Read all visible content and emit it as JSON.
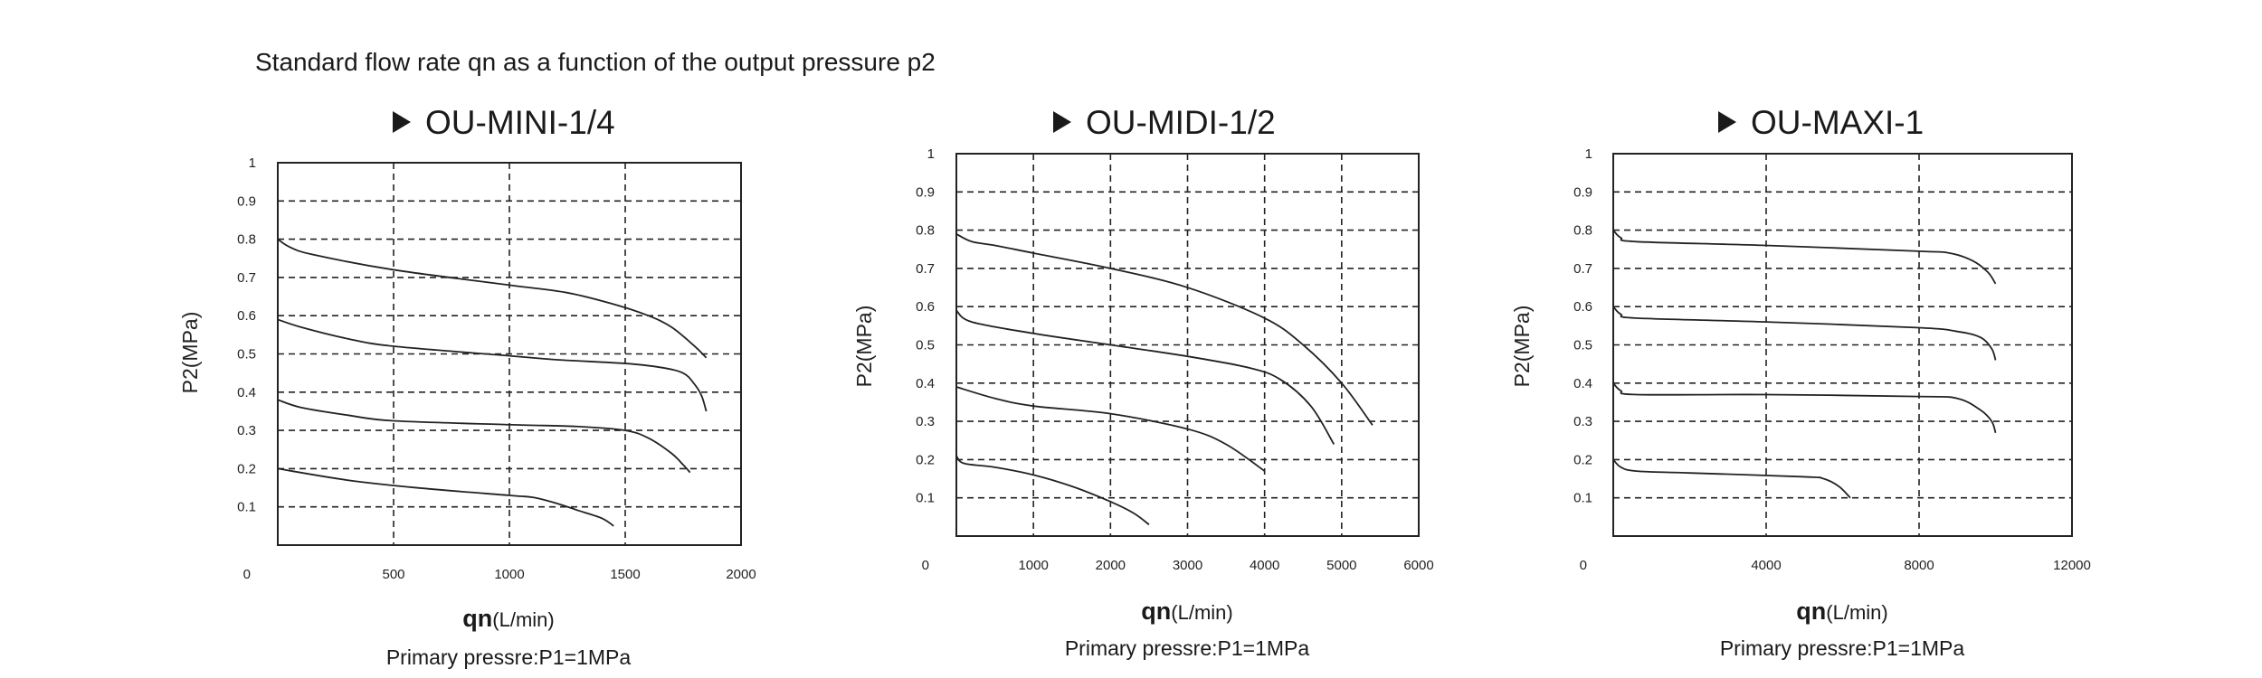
{
  "page_title": "Standard flow rate qn as a function of the output pressure p2",
  "chart_data": [
    {
      "type": "line",
      "title": "OU-MINI-1/4",
      "ylabel": "P2(MPa)",
      "xlabel_main": "qn",
      "xlabel_unit": "(L/min)",
      "footnote": "Primary pressre:P1=1MPa",
      "xlim": [
        0,
        2000
      ],
      "ylim": [
        0,
        1
      ],
      "x_ticks": [
        0,
        500,
        1000,
        1500,
        2000
      ],
      "x_tick_labels": [
        "0",
        "500",
        "1000",
        "1500",
        "2000"
      ],
      "y_ticks": [
        0.1,
        0.2,
        0.3,
        0.4,
        0.5,
        0.6,
        0.7,
        0.8,
        0.9,
        1
      ],
      "y_tick_labels": [
        "0.1",
        "0.2",
        "0.3",
        "0.4",
        "0.5",
        "0.6",
        "0.7",
        "0.8",
        "0.9",
        "1"
      ],
      "grid": true,
      "series": [
        {
          "x": [
            0,
            50,
            150,
            500,
            1000,
            1250,
            1450,
            1600,
            1700,
            1800,
            1850
          ],
          "y": [
            0.8,
            0.78,
            0.76,
            0.72,
            0.68,
            0.66,
            0.63,
            0.6,
            0.57,
            0.52,
            0.49
          ]
        },
        {
          "x": [
            0,
            100,
            300,
            500,
            1000,
            1200,
            1500,
            1650,
            1750,
            1800,
            1830,
            1850
          ],
          "y": [
            0.59,
            0.57,
            0.54,
            0.52,
            0.495,
            0.485,
            0.475,
            0.465,
            0.45,
            0.42,
            0.39,
            0.35
          ]
        },
        {
          "x": [
            0,
            100,
            300,
            500,
            1000,
            1300,
            1500,
            1600,
            1700,
            1750,
            1780
          ],
          "y": [
            0.38,
            0.36,
            0.34,
            0.325,
            0.315,
            0.31,
            0.3,
            0.28,
            0.24,
            0.21,
            0.19
          ]
        },
        {
          "x": [
            0,
            300,
            600,
            1000,
            1100,
            1200,
            1300,
            1400,
            1450
          ],
          "y": [
            0.2,
            0.17,
            0.15,
            0.13,
            0.125,
            0.11,
            0.09,
            0.07,
            0.05
          ]
        }
      ]
    },
    {
      "type": "line",
      "title": "OU-MIDI-1/2",
      "ylabel": "P2(MPa)",
      "xlabel_main": "qn",
      "xlabel_unit": "(L/min)",
      "footnote": "Primary pressre:P1=1MPa",
      "xlim": [
        0,
        6000
      ],
      "ylim": [
        0,
        1
      ],
      "x_ticks": [
        0,
        1000,
        2000,
        3000,
        4000,
        5000,
        6000
      ],
      "x_tick_labels": [
        "0",
        "1000",
        "2000",
        "3000",
        "4000",
        "5000",
        "6000"
      ],
      "y_ticks": [
        0.1,
        0.2,
        0.3,
        0.4,
        0.5,
        0.6,
        0.7,
        0.8,
        0.9,
        1
      ],
      "y_tick_labels": [
        "0.1",
        "0.2",
        "0.3",
        "0.4",
        "0.5",
        "0.6",
        "0.7",
        "0.8",
        "0.9",
        "1"
      ],
      "grid": true,
      "series": [
        {
          "x": [
            0,
            200,
            500,
            1000,
            2000,
            3000,
            4000,
            4500,
            5000,
            5400
          ],
          "y": [
            0.79,
            0.77,
            0.76,
            0.74,
            0.7,
            0.65,
            0.57,
            0.5,
            0.4,
            0.29
          ]
        },
        {
          "x": [
            0,
            200,
            1000,
            2000,
            3000,
            3800,
            4200,
            4600,
            4900
          ],
          "y": [
            0.59,
            0.56,
            0.53,
            0.5,
            0.47,
            0.44,
            0.41,
            0.34,
            0.24
          ]
        },
        {
          "x": [
            0,
            500,
            1000,
            2000,
            3000,
            3500,
            4000
          ],
          "y": [
            0.39,
            0.36,
            0.34,
            0.32,
            0.28,
            0.24,
            0.17
          ]
        },
        {
          "x": [
            0,
            100,
            500,
            1000,
            1500,
            2000,
            2300,
            2500
          ],
          "y": [
            0.21,
            0.19,
            0.18,
            0.16,
            0.13,
            0.09,
            0.06,
            0.03
          ]
        }
      ]
    },
    {
      "type": "line",
      "title": "OU-MAXI-1",
      "ylabel": "P2(MPa)",
      "xlabel_main": "qn",
      "xlabel_unit": "(L/min)",
      "footnote": "Primary pressre:P1=1MPa",
      "xlim": [
        0,
        12000
      ],
      "ylim": [
        0,
        1
      ],
      "x_ticks": [
        0,
        4000,
        8000,
        12000
      ],
      "x_tick_labels": [
        "0",
        "4000",
        "8000",
        "12000"
      ],
      "y_ticks": [
        0.1,
        0.2,
        0.3,
        0.4,
        0.5,
        0.6,
        0.7,
        0.8,
        0.9,
        1
      ],
      "y_tick_labels": [
        "0.1",
        "0.2",
        "0.3",
        "0.4",
        "0.5",
        "0.6",
        "0.7",
        "0.8",
        "0.9",
        "1"
      ],
      "grid": true,
      "series": [
        {
          "x": [
            0,
            200,
            600,
            4000,
            8000,
            8800,
            9400,
            9800,
            10000
          ],
          "y": [
            0.8,
            0.78,
            0.77,
            0.76,
            0.745,
            0.74,
            0.72,
            0.69,
            0.66
          ]
        },
        {
          "x": [
            0,
            200,
            600,
            4000,
            8000,
            9000,
            9600,
            9900,
            10000
          ],
          "y": [
            0.6,
            0.58,
            0.57,
            0.56,
            0.545,
            0.535,
            0.52,
            0.49,
            0.46
          ]
        },
        {
          "x": [
            0,
            200,
            600,
            4000,
            8000,
            9000,
            9600,
            9900,
            10000
          ],
          "y": [
            0.4,
            0.38,
            0.37,
            0.37,
            0.365,
            0.36,
            0.33,
            0.3,
            0.27
          ]
        },
        {
          "x": [
            0,
            200,
            600,
            2000,
            5000,
            5500,
            5900,
            6200
          ],
          "y": [
            0.2,
            0.18,
            0.17,
            0.165,
            0.155,
            0.15,
            0.13,
            0.1
          ]
        }
      ]
    }
  ]
}
